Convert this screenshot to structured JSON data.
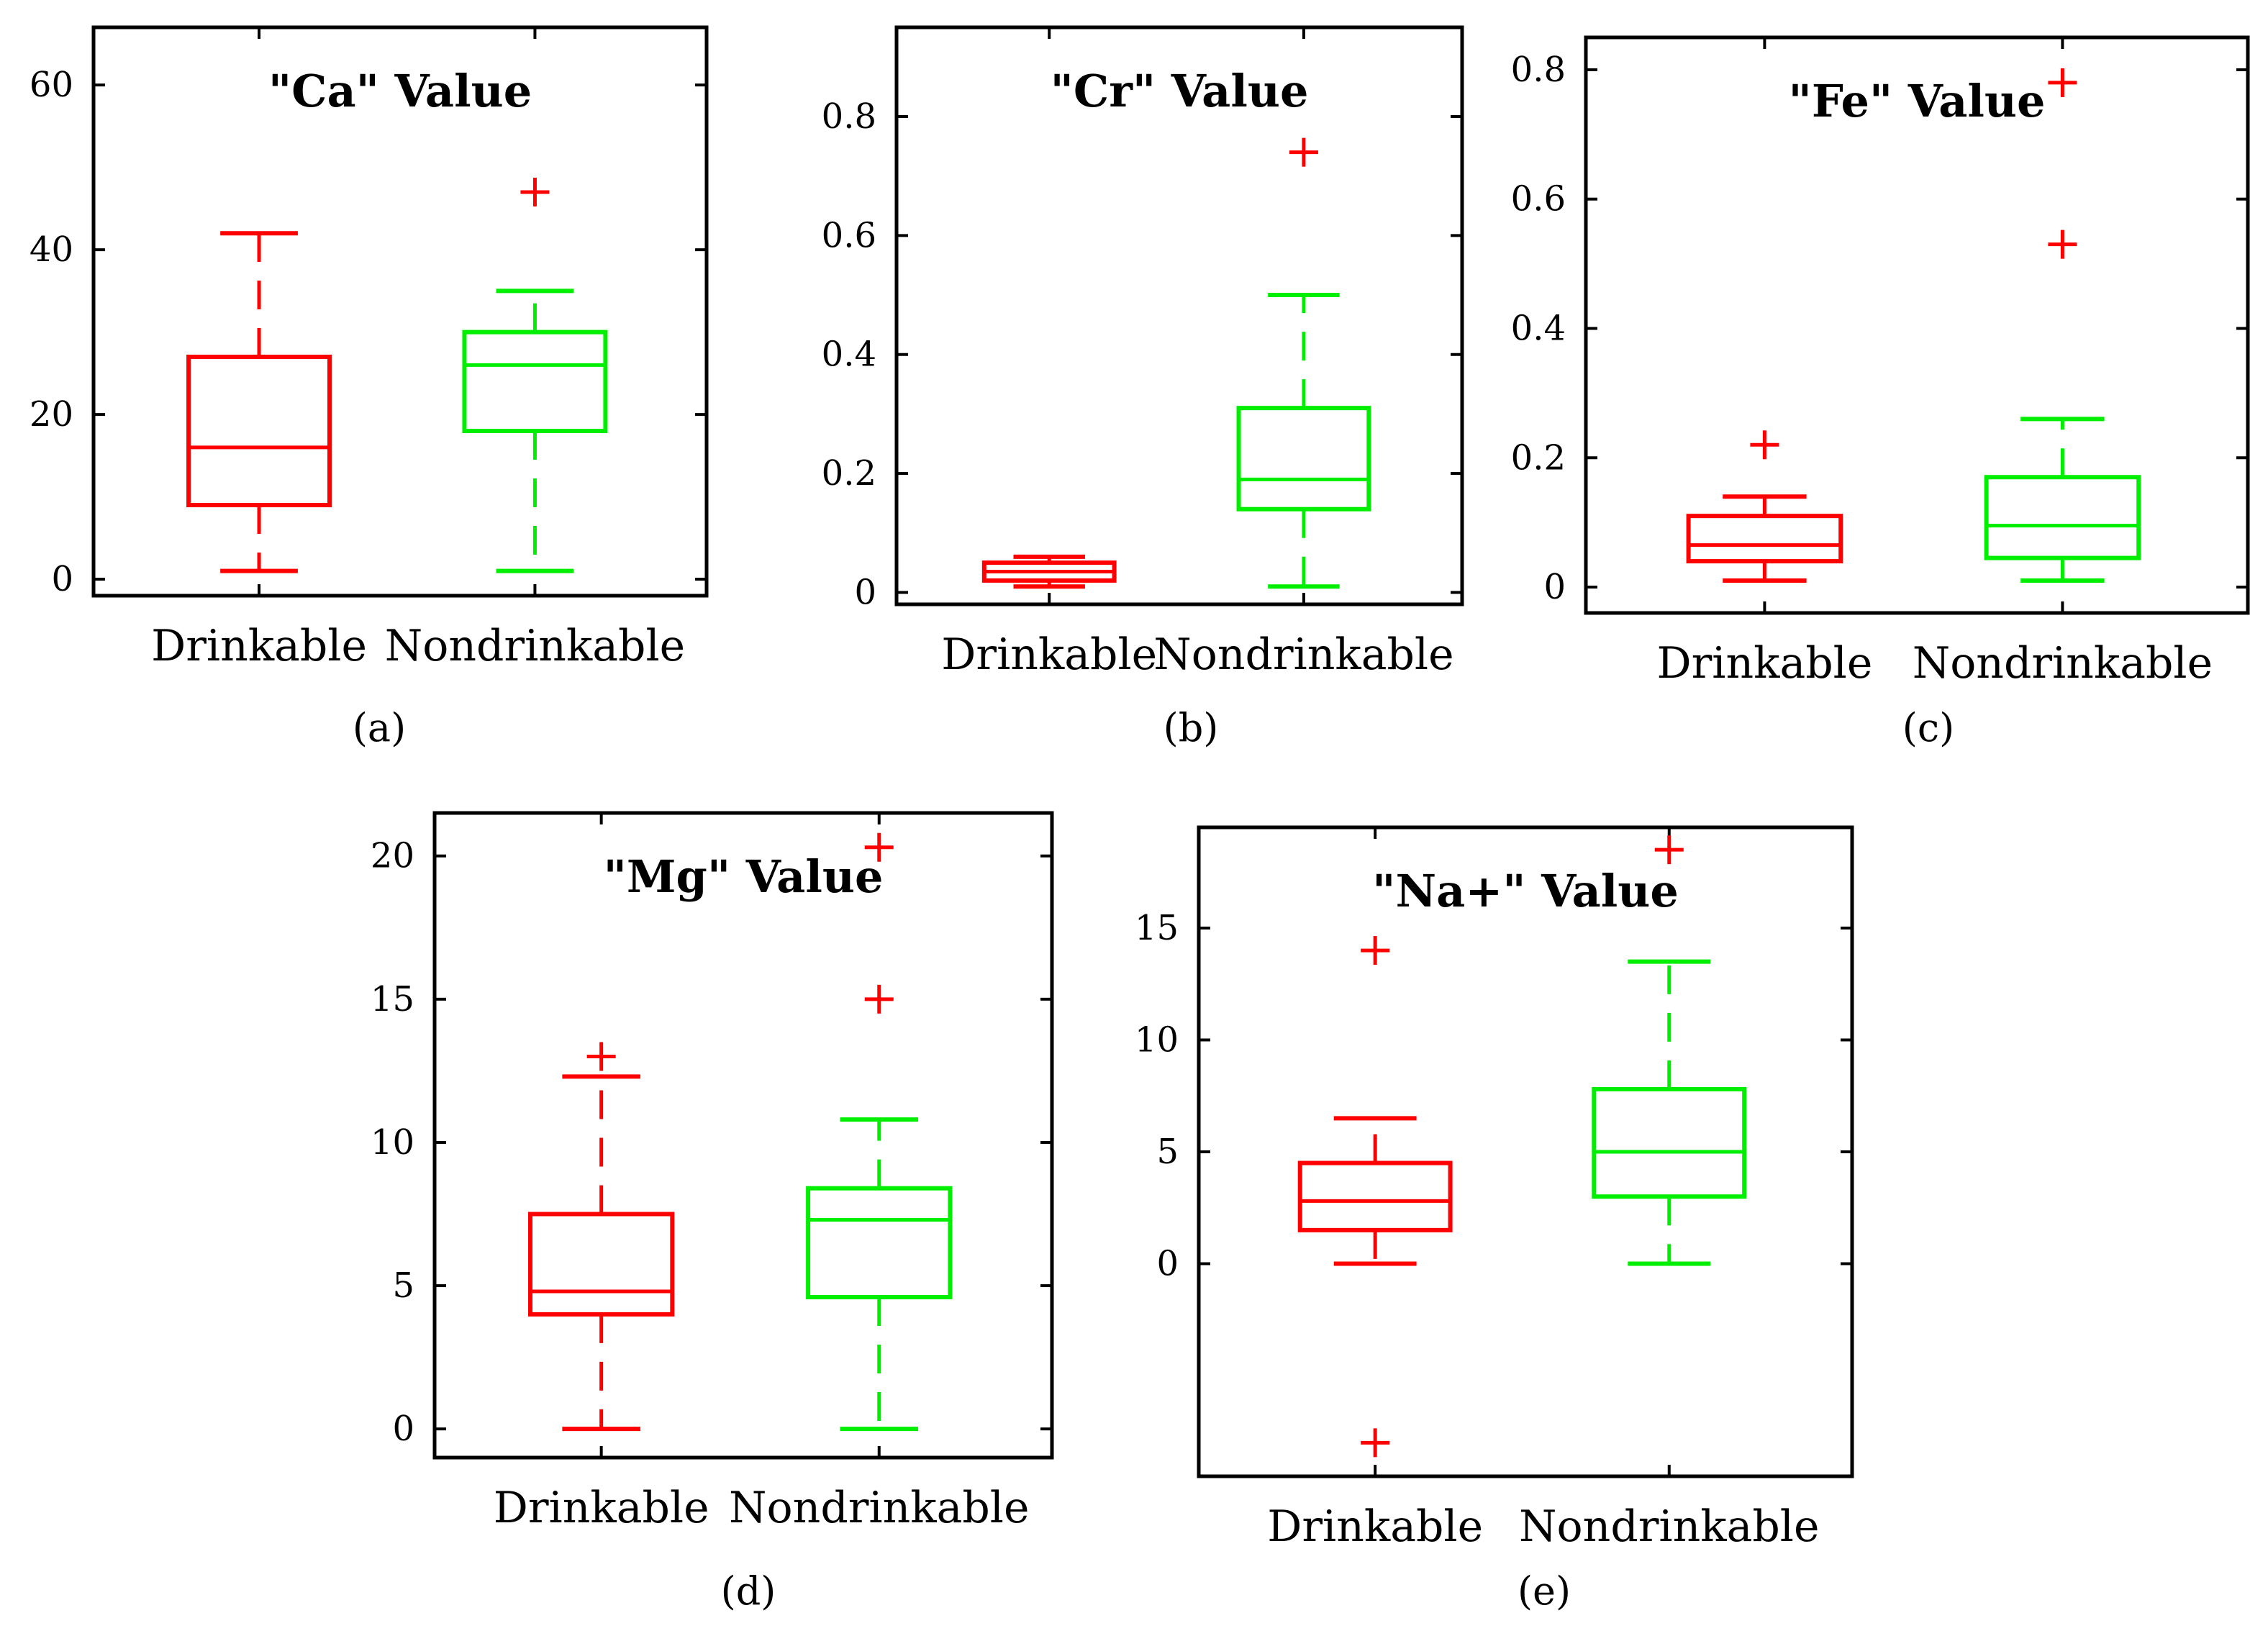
{
  "figure": {
    "colors": {
      "drinkable": "#ff0000",
      "nondrinkable": "#00ee00",
      "axis": "#000000"
    }
  },
  "chart_data": [
    {
      "type": "boxplot",
      "caption": "(a)",
      "title": "\"Ca\" Value",
      "categories": [
        "Drinkable",
        "Nondrinkable"
      ],
      "yticks": [
        0,
        20,
        40,
        60
      ],
      "ytick_labels": [
        "0",
        "20",
        "40",
        "60"
      ],
      "ylim": [
        -2,
        67
      ],
      "boxes": [
        {
          "name": "Drinkable",
          "whisker_low": 1,
          "q1": 9,
          "median": 16,
          "q3": 27,
          "whisker_high": 42,
          "outliers": []
        },
        {
          "name": "Nondrinkable",
          "whisker_low": 1,
          "q1": 18,
          "median": 26,
          "q3": 30,
          "whisker_high": 35,
          "outliers": [
            47
          ]
        }
      ]
    },
    {
      "type": "boxplot",
      "caption": "(b)",
      "title": "\"Cr\" Value",
      "categories": [
        "Drinkable",
        "Nondrinkable"
      ],
      "yticks": [
        0,
        0.2,
        0.4,
        0.6,
        0.8
      ],
      "ytick_labels": [
        "0",
        "0.2",
        "0.4",
        "0.6",
        "0.8"
      ],
      "ylim": [
        -0.02,
        0.95
      ],
      "boxes": [
        {
          "name": "Drinkable",
          "whisker_low": 0.01,
          "q1": 0.02,
          "median": 0.035,
          "q3": 0.05,
          "whisker_high": 0.06,
          "outliers": []
        },
        {
          "name": "Nondrinkable",
          "whisker_low": 0.01,
          "q1": 0.14,
          "median": 0.19,
          "q3": 0.31,
          "whisker_high": 0.5,
          "outliers": [
            0.74
          ]
        }
      ]
    },
    {
      "type": "boxplot",
      "caption": "(c)",
      "title": "\"Fe\" Value",
      "categories": [
        "Drinkable",
        "Nondrinkable"
      ],
      "yticks": [
        0,
        0.2,
        0.4,
        0.6,
        0.8
      ],
      "ytick_labels": [
        "0",
        "0.2",
        "0.4",
        "0.6",
        "0.8"
      ],
      "ylim": [
        -0.04,
        0.85
      ],
      "boxes": [
        {
          "name": "Drinkable",
          "whisker_low": 0.01,
          "q1": 0.04,
          "median": 0.065,
          "q3": 0.11,
          "whisker_high": 0.14,
          "outliers": [
            0.22
          ]
        },
        {
          "name": "Nondrinkable",
          "whisker_low": 0.01,
          "q1": 0.045,
          "median": 0.095,
          "q3": 0.17,
          "whisker_high": 0.26,
          "outliers": [
            0.53,
            0.78
          ]
        }
      ]
    },
    {
      "type": "boxplot",
      "caption": "(d)",
      "title": "\"Mg\" Value",
      "categories": [
        "Drinkable",
        "Nondrinkable"
      ],
      "yticks": [
        0,
        5,
        10,
        15,
        20
      ],
      "ytick_labels": [
        "0",
        "5",
        "10",
        "15",
        "20"
      ],
      "ylim": [
        -1,
        21.5
      ],
      "boxes": [
        {
          "name": "Drinkable",
          "whisker_low": 0,
          "q1": 4,
          "median": 4.8,
          "q3": 7.5,
          "whisker_high": 12.3,
          "outliers": [
            13
          ]
        },
        {
          "name": "Nondrinkable",
          "whisker_low": 0,
          "q1": 4.6,
          "median": 7.3,
          "q3": 8.4,
          "whisker_high": 10.8,
          "outliers": [
            15,
            20.3
          ]
        }
      ]
    },
    {
      "type": "boxplot",
      "caption": "(e)",
      "title": "\"Na+\" Value",
      "categories": [
        "Drinkable",
        "Nondrinkable"
      ],
      "yticks": [
        0,
        5,
        10,
        15
      ],
      "ytick_labels": [
        "0",
        "5",
        "10",
        "15"
      ],
      "ylim": [
        -9.5,
        19.5
      ],
      "boxes": [
        {
          "name": "Drinkable",
          "whisker_low": 0,
          "q1": 1.5,
          "median": 2.8,
          "q3": 4.5,
          "whisker_high": 6.5,
          "outliers": [
            -8,
            14
          ]
        },
        {
          "name": "Nondrinkable",
          "whisker_low": 0,
          "q1": 3,
          "median": 5,
          "q3": 7.8,
          "whisker_high": 13.5,
          "outliers": [
            18.5
          ]
        }
      ]
    }
  ]
}
